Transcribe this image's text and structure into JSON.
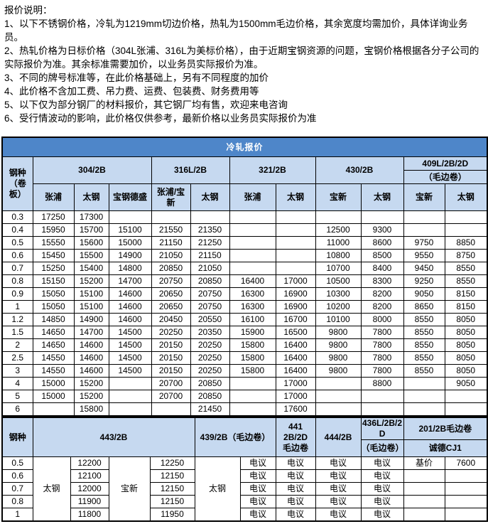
{
  "colors": {
    "title_bg": "#4e86c9",
    "header_bg": "#c6d9f0"
  },
  "notes": {
    "heading": "报价说明：",
    "lines": [
      "1、以下不锈钢价格，冷轧为1219mm切边价格，热轧为1500mm毛边价格，其余宽度均需加价，具体详询业务员。",
      "2、热轧价格为日标价格（304L张浦、316L为美标价格），由于近期宝钢资源的问题，宝钢价格根据各分子公司的实际报价为准。其余标准需要加价，以业务员实际报价为准。",
      "3、不同的牌号标准等，在此价格基础上，另有不同程度的加价",
      "4、此价格不含加工费、吊力费、运费、包装费、财务费用等",
      "5、以下仅为部分钢厂的材料报价，其它钢厂均有售，欢迎来电咨询",
      "6、受行情波动的影响，此价格仅供参考，最新价格以业务员实际报价为准"
    ]
  },
  "cold_rolled": {
    "title": "冷轧报价",
    "corner": "钢种\n（卷\n板）",
    "groups": [
      {
        "label": "304/2B",
        "mills": [
          "张浦",
          "太钢",
          "宝钢德盛"
        ]
      },
      {
        "label": "316L/2B",
        "mills": [
          "张浦/宝\n新",
          "太钢"
        ]
      },
      {
        "label": "321/2B",
        "mills": [
          "张浦",
          "太钢"
        ]
      },
      {
        "label": "430/2B",
        "mills": [
          "宝新",
          "太钢"
        ]
      },
      {
        "label": "409L/2B/2D",
        "sublabel": "（毛边卷）",
        "mills": [
          "宝新",
          "太钢"
        ]
      }
    ],
    "rows": [
      {
        "t": "0.3",
        "v": [
          "17250",
          "17300",
          "",
          "",
          "",
          "",
          "",
          "",
          "",
          "",
          ""
        ]
      },
      {
        "t": "0.4",
        "v": [
          "15950",
          "15700",
          "15100",
          "21550",
          "21350",
          "",
          "",
          "12500",
          "9300",
          "",
          ""
        ]
      },
      {
        "t": "0.5",
        "v": [
          "15550",
          "15600",
          "15000",
          "21150",
          "21250",
          "",
          "",
          "11000",
          "8600",
          "9750",
          "8850"
        ]
      },
      {
        "t": "0.6",
        "v": [
          "15450",
          "15500",
          "14900",
          "21050",
          "21150",
          "",
          "",
          "10800",
          "8500",
          "9550",
          "8750"
        ]
      },
      {
        "t": "0.7",
        "v": [
          "15250",
          "15400",
          "14800",
          "20850",
          "21050",
          "",
          "",
          "10700",
          "8400",
          "9450",
          "8550"
        ]
      },
      {
        "t": "0.8",
        "v": [
          "15150",
          "15200",
          "14700",
          "20750",
          "20850",
          "16400",
          "17000",
          "10500",
          "8300",
          "9250",
          "8550"
        ]
      },
      {
        "t": "0.9",
        "v": [
          "15050",
          "15100",
          "14600",
          "20650",
          "20750",
          "16300",
          "16900",
          "10300",
          "8200",
          "9050",
          "8150"
        ]
      },
      {
        "t": "1",
        "v": [
          "15050",
          "15100",
          "14600",
          "20650",
          "20750",
          "16300",
          "16900",
          "10200",
          "8200",
          "8650",
          "8150"
        ]
      },
      {
        "t": "1.2",
        "v": [
          "14850",
          "14900",
          "14600",
          "20450",
          "20550",
          "16100",
          "16700",
          "10100",
          "8000",
          "8550",
          "8050"
        ]
      },
      {
        "t": "1.5",
        "v": [
          "14650",
          "14700",
          "14500",
          "20250",
          "20350",
          "15900",
          "16500",
          "9800",
          "7800",
          "8550",
          "8050"
        ]
      },
      {
        "t": "2",
        "v": [
          "14650",
          "14600",
          "14500",
          "20150",
          "20250",
          "15800",
          "16400",
          "9800",
          "7800",
          "8550",
          "8050"
        ]
      },
      {
        "t": "2.5",
        "v": [
          "14550",
          "14600",
          "14500",
          "20150",
          "20250",
          "15800",
          "16400",
          "9800",
          "7800",
          "8550",
          "8050"
        ]
      },
      {
        "t": "3",
        "v": [
          "14550",
          "14600",
          "14500",
          "20150",
          "20250",
          "15800",
          "16400",
          "9800",
          "7800",
          "8550",
          "8050"
        ]
      },
      {
        "t": "4",
        "v": [
          "15000",
          "15200",
          "",
          "20700",
          "20850",
          "",
          "17000",
          "",
          "8800",
          "",
          "9050"
        ]
      },
      {
        "t": "5",
        "v": [
          "15000",
          "15200",
          "",
          "20700",
          "20850",
          "",
          "17000",
          "",
          "",
          "",
          ""
        ]
      },
      {
        "t": "6",
        "v": [
          "",
          "15800",
          "",
          "",
          "21450",
          "",
          "17600",
          "",
          "",
          "",
          ""
        ]
      }
    ]
  },
  "second_table": {
    "corner": "钢种",
    "groups": {
      "g443": "443/2B",
      "g439": "439/2B（毛边卷）",
      "g441": "441\n2B/2D\n毛边卷",
      "g444": "444/2B",
      "g436_line1": "436L/2B/2D",
      "g436_line2": "（毛边卷）",
      "g201_line1": "201/2B毛边卷",
      "g201_line2": "诚德CJ1"
    },
    "mills": [
      "太钢",
      "宝新",
      "太钢"
    ],
    "rows": [
      {
        "t": "0.5",
        "v": [
          "12200",
          "12250",
          "电议",
          "电议",
          "电议",
          "电议",
          "基价",
          "7600"
        ]
      },
      {
        "t": "0.6",
        "v": [
          "12100",
          "12150",
          "电议",
          "电议",
          "电议",
          "电议",
          "",
          ""
        ]
      },
      {
        "t": "0.7",
        "v": [
          "12000",
          "12150",
          "电议",
          "电议",
          "电议",
          "电议",
          "",
          ""
        ]
      },
      {
        "t": "0.8",
        "v": [
          "11900",
          "12150",
          "电议",
          "电议",
          "电议",
          "电议",
          "",
          ""
        ]
      },
      {
        "t": "1",
        "v": [
          "11800",
          "11950",
          "电议",
          "电议",
          "电议",
          "电议",
          "",
          ""
        ]
      }
    ]
  }
}
